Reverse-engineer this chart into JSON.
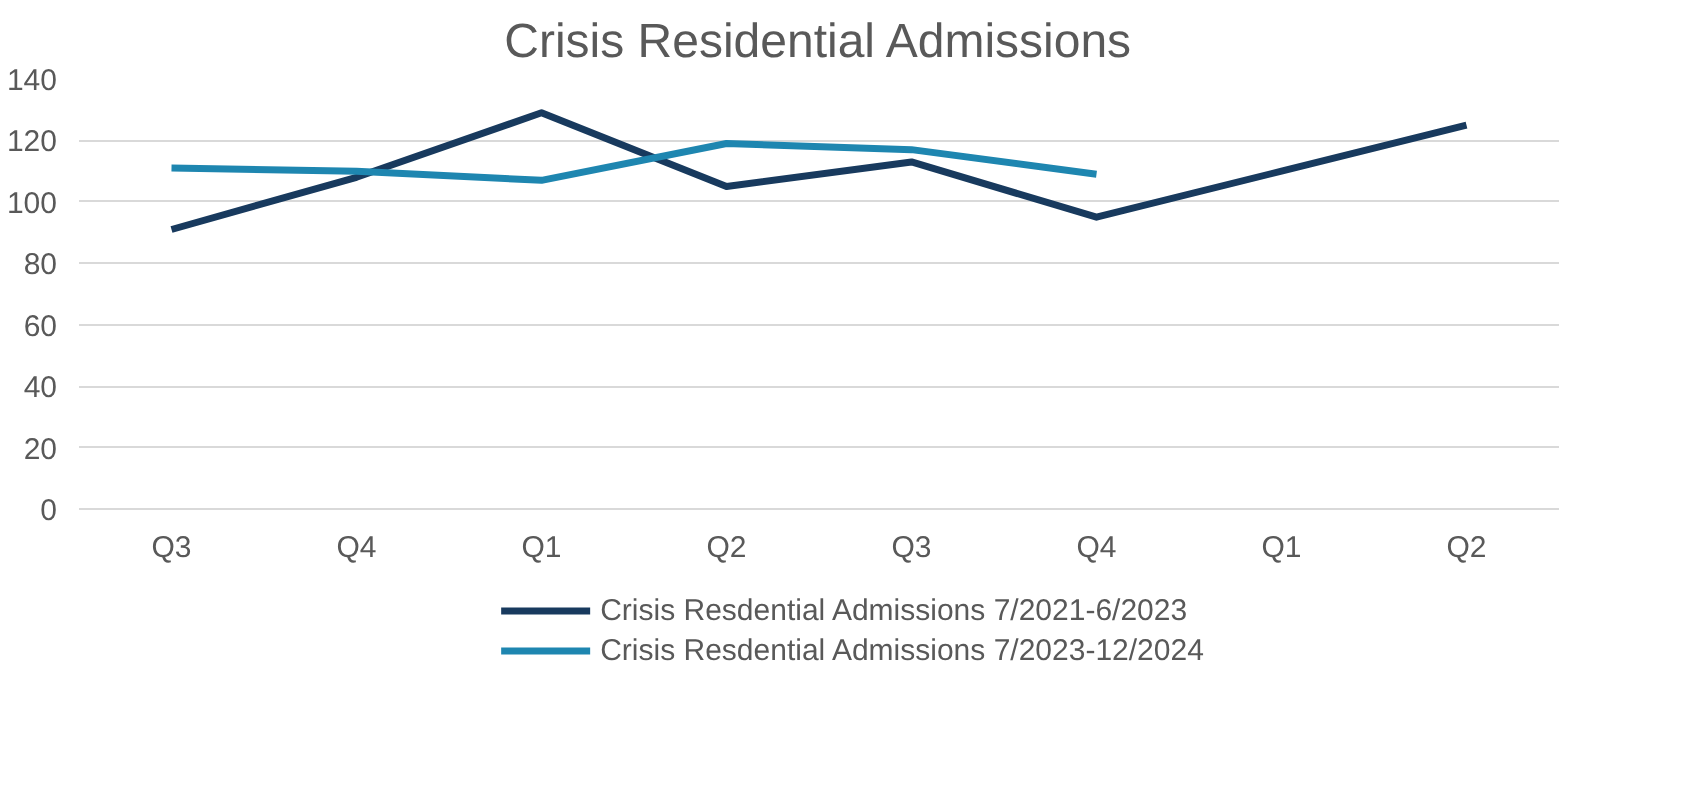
{
  "chart_data": {
    "type": "line",
    "title": "Crisis Residential Admissions",
    "categories": [
      "Q3",
      "Q4",
      "Q1",
      "Q2",
      "Q3",
      "Q4",
      "Q1",
      "Q2"
    ],
    "series": [
      {
        "name": "Crisis Resdential Admissions 7/2021-6/2023",
        "color": "#183a5e",
        "values": [
          91,
          108,
          129,
          105,
          113,
          95,
          110,
          125
        ]
      },
      {
        "name": "Crisis Resdential Admissions 7/2023-12/2024",
        "color": "#1e86b0",
        "values": [
          111,
          110,
          107,
          119,
          117,
          109,
          null,
          null
        ]
      }
    ],
    "ylim": [
      0,
      140
    ],
    "yticks": [
      0,
      20,
      40,
      60,
      80,
      100,
      120,
      140
    ],
    "grid": "y",
    "legend": "bottom",
    "marker": "none",
    "line_style": "solid"
  }
}
